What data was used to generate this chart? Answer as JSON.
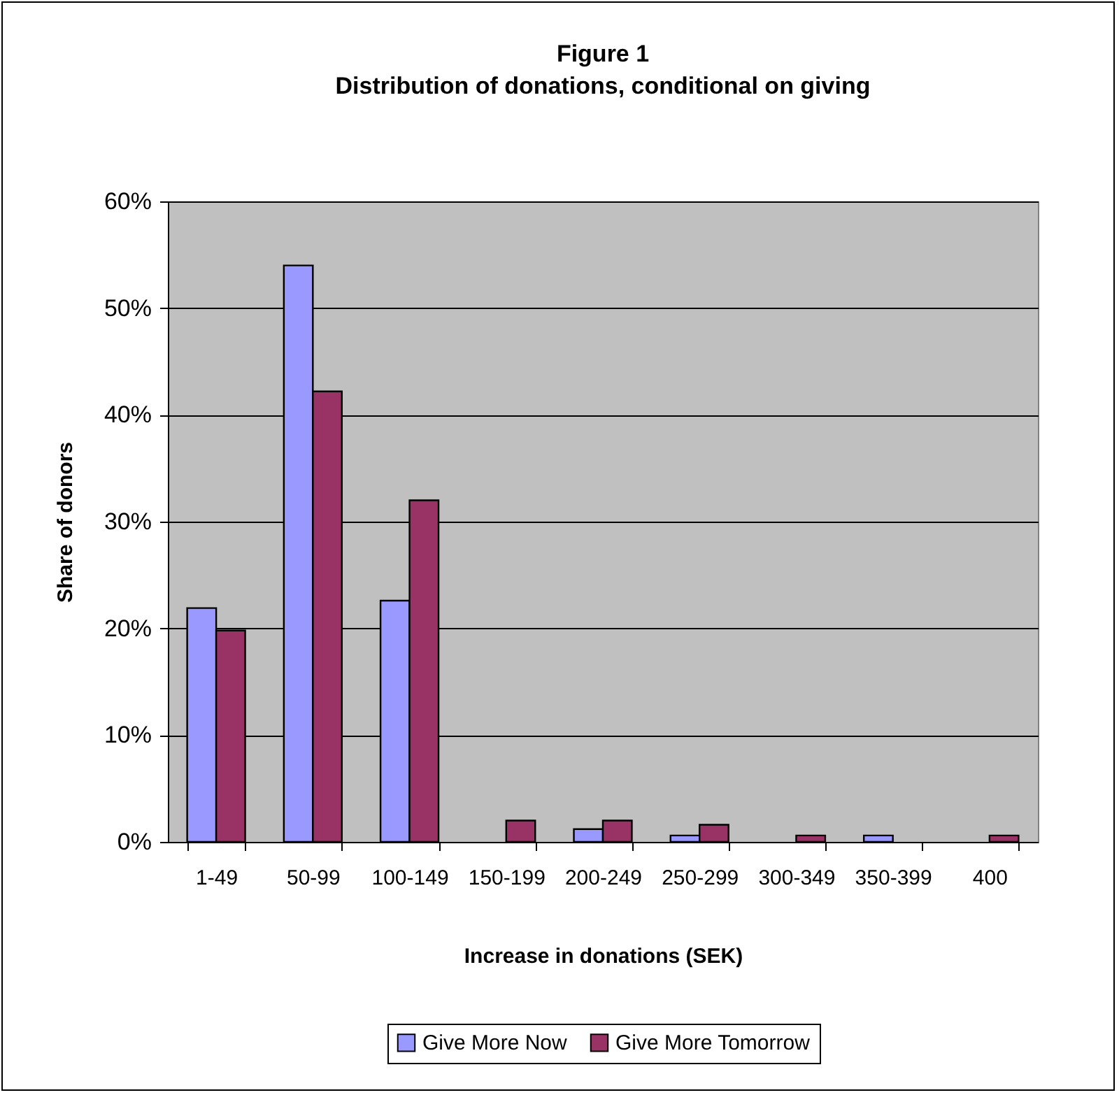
{
  "chart_data": {
    "type": "bar",
    "title": "Figure 1",
    "subtitle": "Distribution of donations, conditional on giving",
    "xlabel": "Increase in donations (SEK)",
    "ylabel": "Share of donors",
    "categories": [
      "1-49",
      "50-99",
      "100-149",
      "150-199",
      "200-249",
      "250-299",
      "300-349",
      "350-399",
      "400"
    ],
    "series": [
      {
        "name": "Give More Now",
        "color": "#9999ff",
        "values": [
          21.9,
          54.0,
          22.6,
          null,
          1.2,
          0.6,
          null,
          0.6,
          null
        ]
      },
      {
        "name": "Give More Tomorrow",
        "color": "#993366",
        "values": [
          19.8,
          42.2,
          32.0,
          2.0,
          2.0,
          1.6,
          0.6,
          null,
          0.6
        ]
      }
    ],
    "ylim": [
      0,
      60
    ],
    "yticks": [
      {
        "value": 0,
        "label": "0%"
      },
      {
        "value": 10,
        "label": "10%"
      },
      {
        "value": 20,
        "label": "20%"
      },
      {
        "value": 30,
        "label": "30%"
      },
      {
        "value": 40,
        "label": "40%"
      },
      {
        "value": 50,
        "label": "50%"
      },
      {
        "value": 60,
        "label": "60%"
      }
    ],
    "grid": "y",
    "legend": "bottom"
  }
}
